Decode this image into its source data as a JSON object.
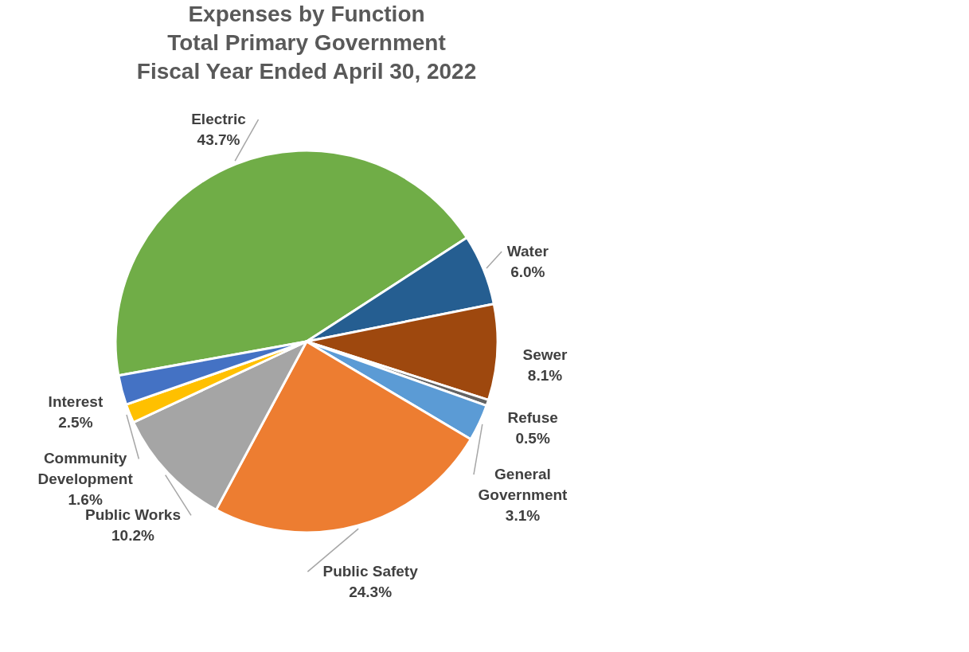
{
  "chart_data": {
    "type": "pie",
    "title": "Expenses by Function\nTotal Primary Government\nFiscal Year Ended April 30, 2022",
    "categories": [
      "Electric",
      "Water",
      "Sewer",
      "Refuse",
      "General Government",
      "Public Safety",
      "Public Works",
      "Community Development",
      "Interest"
    ],
    "values": [
      43.7,
      6.0,
      8.1,
      0.5,
      3.1,
      24.3,
      10.2,
      1.6,
      2.5
    ],
    "value_labels": [
      "43.7%",
      "6.0%",
      "8.1%",
      "0.5%",
      "3.1%",
      "24.3%",
      "10.2%",
      "1.6%",
      "2.5%"
    ],
    "colors": [
      "#70ad47",
      "#255e91",
      "#9e480e",
      "#636363",
      "#5b9bd5",
      "#ed7d31",
      "#a5a5a5",
      "#ffc000",
      "#4472c4"
    ],
    "legend": false
  }
}
